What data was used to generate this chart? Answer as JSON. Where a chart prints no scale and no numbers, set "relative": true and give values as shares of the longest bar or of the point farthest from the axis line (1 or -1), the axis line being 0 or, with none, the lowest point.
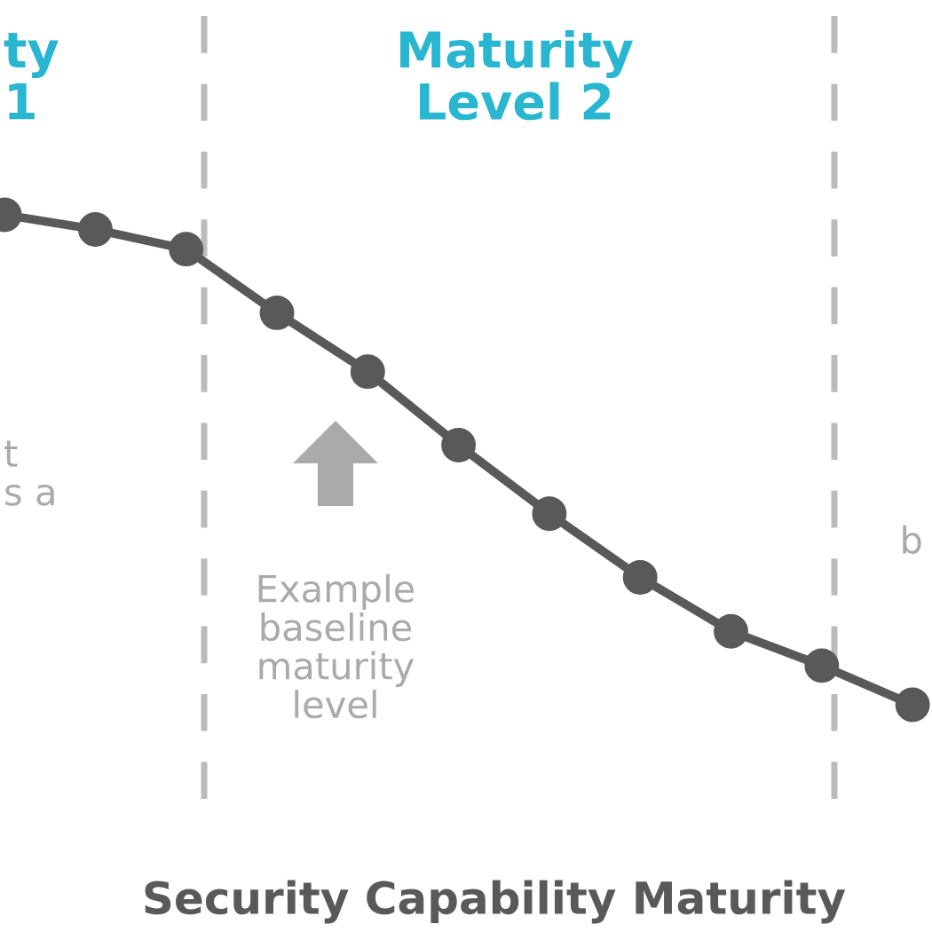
{
  "chart_data": {
    "type": "line",
    "relative": true,
    "categories": [
      null,
      null,
      null,
      null,
      null,
      null,
      null,
      null,
      null,
      null,
      null
    ],
    "xlabel": "Security Capability Maturity",
    "series": [
      {
        "color": "#595959",
        "values": [
          1,
          0.97,
          0.93,
          0.8,
          0.68,
          0.53,
          0.39,
          0.26,
          0.15,
          0.08,
          0
        ]
      }
    ],
    "marker": "circle",
    "line_style": "solid",
    "annotations": [
      "ty\n1",
      "Maturity\nLevel 2",
      "t\ns a",
      "Example\nbaseline\nmaturity\nlevel",
      "b"
    ]
  }
}
